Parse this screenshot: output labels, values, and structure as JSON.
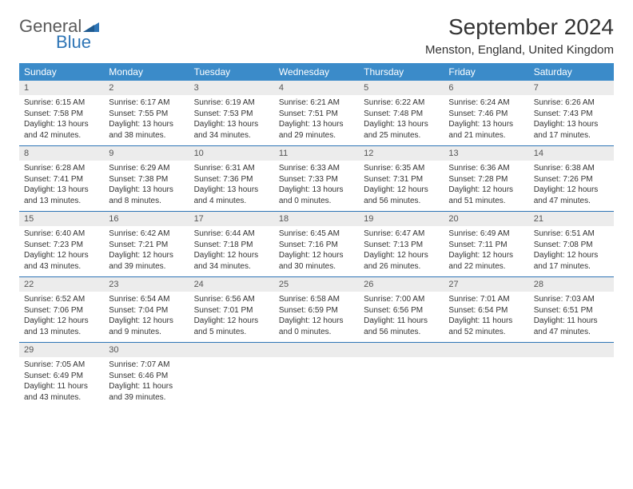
{
  "brand": {
    "part1": "General",
    "part2": "Blue"
  },
  "title": "September 2024",
  "location": "Menston, England, United Kingdom",
  "colors": {
    "header_bg": "#3b8bc9",
    "daynum_bg": "#ececec",
    "rule": "#2e75b6",
    "text": "#333333",
    "brand_gray": "#5a5a5a",
    "brand_blue": "#2e75b6"
  },
  "weekdays": [
    "Sunday",
    "Monday",
    "Tuesday",
    "Wednesday",
    "Thursday",
    "Friday",
    "Saturday"
  ],
  "weeks": [
    [
      {
        "n": "1",
        "sr": "Sunrise: 6:15 AM",
        "ss": "Sunset: 7:58 PM",
        "d1": "Daylight: 13 hours",
        "d2": "and 42 minutes."
      },
      {
        "n": "2",
        "sr": "Sunrise: 6:17 AM",
        "ss": "Sunset: 7:55 PM",
        "d1": "Daylight: 13 hours",
        "d2": "and 38 minutes."
      },
      {
        "n": "3",
        "sr": "Sunrise: 6:19 AM",
        "ss": "Sunset: 7:53 PM",
        "d1": "Daylight: 13 hours",
        "d2": "and 34 minutes."
      },
      {
        "n": "4",
        "sr": "Sunrise: 6:21 AM",
        "ss": "Sunset: 7:51 PM",
        "d1": "Daylight: 13 hours",
        "d2": "and 29 minutes."
      },
      {
        "n": "5",
        "sr": "Sunrise: 6:22 AM",
        "ss": "Sunset: 7:48 PM",
        "d1": "Daylight: 13 hours",
        "d2": "and 25 minutes."
      },
      {
        "n": "6",
        "sr": "Sunrise: 6:24 AM",
        "ss": "Sunset: 7:46 PM",
        "d1": "Daylight: 13 hours",
        "d2": "and 21 minutes."
      },
      {
        "n": "7",
        "sr": "Sunrise: 6:26 AM",
        "ss": "Sunset: 7:43 PM",
        "d1": "Daylight: 13 hours",
        "d2": "and 17 minutes."
      }
    ],
    [
      {
        "n": "8",
        "sr": "Sunrise: 6:28 AM",
        "ss": "Sunset: 7:41 PM",
        "d1": "Daylight: 13 hours",
        "d2": "and 13 minutes."
      },
      {
        "n": "9",
        "sr": "Sunrise: 6:29 AM",
        "ss": "Sunset: 7:38 PM",
        "d1": "Daylight: 13 hours",
        "d2": "and 8 minutes."
      },
      {
        "n": "10",
        "sr": "Sunrise: 6:31 AM",
        "ss": "Sunset: 7:36 PM",
        "d1": "Daylight: 13 hours",
        "d2": "and 4 minutes."
      },
      {
        "n": "11",
        "sr": "Sunrise: 6:33 AM",
        "ss": "Sunset: 7:33 PM",
        "d1": "Daylight: 13 hours",
        "d2": "and 0 minutes."
      },
      {
        "n": "12",
        "sr": "Sunrise: 6:35 AM",
        "ss": "Sunset: 7:31 PM",
        "d1": "Daylight: 12 hours",
        "d2": "and 56 minutes."
      },
      {
        "n": "13",
        "sr": "Sunrise: 6:36 AM",
        "ss": "Sunset: 7:28 PM",
        "d1": "Daylight: 12 hours",
        "d2": "and 51 minutes."
      },
      {
        "n": "14",
        "sr": "Sunrise: 6:38 AM",
        "ss": "Sunset: 7:26 PM",
        "d1": "Daylight: 12 hours",
        "d2": "and 47 minutes."
      }
    ],
    [
      {
        "n": "15",
        "sr": "Sunrise: 6:40 AM",
        "ss": "Sunset: 7:23 PM",
        "d1": "Daylight: 12 hours",
        "d2": "and 43 minutes."
      },
      {
        "n": "16",
        "sr": "Sunrise: 6:42 AM",
        "ss": "Sunset: 7:21 PM",
        "d1": "Daylight: 12 hours",
        "d2": "and 39 minutes."
      },
      {
        "n": "17",
        "sr": "Sunrise: 6:44 AM",
        "ss": "Sunset: 7:18 PM",
        "d1": "Daylight: 12 hours",
        "d2": "and 34 minutes."
      },
      {
        "n": "18",
        "sr": "Sunrise: 6:45 AM",
        "ss": "Sunset: 7:16 PM",
        "d1": "Daylight: 12 hours",
        "d2": "and 30 minutes."
      },
      {
        "n": "19",
        "sr": "Sunrise: 6:47 AM",
        "ss": "Sunset: 7:13 PM",
        "d1": "Daylight: 12 hours",
        "d2": "and 26 minutes."
      },
      {
        "n": "20",
        "sr": "Sunrise: 6:49 AM",
        "ss": "Sunset: 7:11 PM",
        "d1": "Daylight: 12 hours",
        "d2": "and 22 minutes."
      },
      {
        "n": "21",
        "sr": "Sunrise: 6:51 AM",
        "ss": "Sunset: 7:08 PM",
        "d1": "Daylight: 12 hours",
        "d2": "and 17 minutes."
      }
    ],
    [
      {
        "n": "22",
        "sr": "Sunrise: 6:52 AM",
        "ss": "Sunset: 7:06 PM",
        "d1": "Daylight: 12 hours",
        "d2": "and 13 minutes."
      },
      {
        "n": "23",
        "sr": "Sunrise: 6:54 AM",
        "ss": "Sunset: 7:04 PM",
        "d1": "Daylight: 12 hours",
        "d2": "and 9 minutes."
      },
      {
        "n": "24",
        "sr": "Sunrise: 6:56 AM",
        "ss": "Sunset: 7:01 PM",
        "d1": "Daylight: 12 hours",
        "d2": "and 5 minutes."
      },
      {
        "n": "25",
        "sr": "Sunrise: 6:58 AM",
        "ss": "Sunset: 6:59 PM",
        "d1": "Daylight: 12 hours",
        "d2": "and 0 minutes."
      },
      {
        "n": "26",
        "sr": "Sunrise: 7:00 AM",
        "ss": "Sunset: 6:56 PM",
        "d1": "Daylight: 11 hours",
        "d2": "and 56 minutes."
      },
      {
        "n": "27",
        "sr": "Sunrise: 7:01 AM",
        "ss": "Sunset: 6:54 PM",
        "d1": "Daylight: 11 hours",
        "d2": "and 52 minutes."
      },
      {
        "n": "28",
        "sr": "Sunrise: 7:03 AM",
        "ss": "Sunset: 6:51 PM",
        "d1": "Daylight: 11 hours",
        "d2": "and 47 minutes."
      }
    ],
    [
      {
        "n": "29",
        "sr": "Sunrise: 7:05 AM",
        "ss": "Sunset: 6:49 PM",
        "d1": "Daylight: 11 hours",
        "d2": "and 43 minutes."
      },
      {
        "n": "30",
        "sr": "Sunrise: 7:07 AM",
        "ss": "Sunset: 6:46 PM",
        "d1": "Daylight: 11 hours",
        "d2": "and 39 minutes."
      },
      {
        "empty": true
      },
      {
        "empty": true
      },
      {
        "empty": true
      },
      {
        "empty": true
      },
      {
        "empty": true
      }
    ]
  ]
}
